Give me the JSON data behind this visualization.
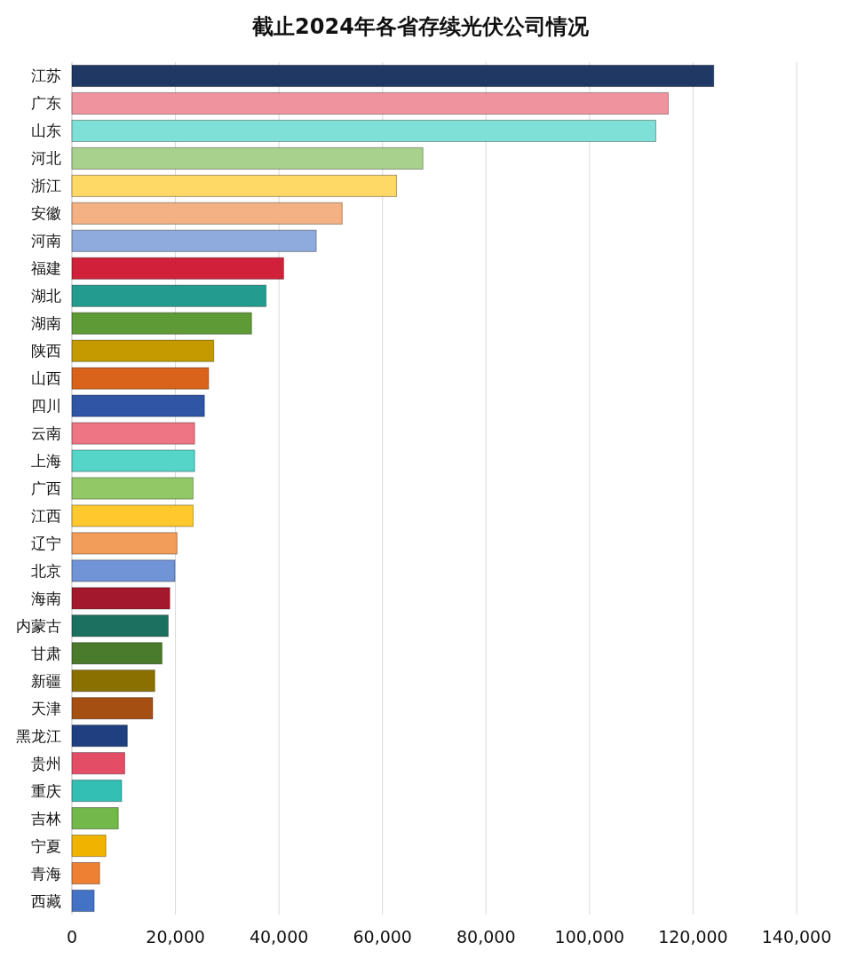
{
  "chart_data": {
    "type": "bar",
    "orientation": "horizontal",
    "title": "截止2024年各省存续光伏公司情况",
    "categories": [
      "江苏",
      "广东",
      "山东",
      "河北",
      "浙江",
      "安徽",
      "河南",
      "福建",
      "湖北",
      "湖南",
      "陕西",
      "山西",
      "四川",
      "云南",
      "上海",
      "广西",
      "江西",
      "辽宁",
      "北京",
      "海南",
      "内蒙古",
      "甘肃",
      "新疆",
      "天津",
      "黑龙江",
      "贵州",
      "重庆",
      "吉林",
      "宁夏",
      "青海",
      "西藏"
    ],
    "values": [
      124000,
      115200,
      112800,
      67800,
      62700,
      52200,
      47200,
      40900,
      37500,
      34700,
      27400,
      26400,
      25600,
      23700,
      23700,
      23400,
      23400,
      20300,
      19900,
      18900,
      18600,
      17400,
      16000,
      15600,
      10700,
      10200,
      9600,
      8950,
      6550,
      5350,
      4300
    ],
    "colors": [
      "#1f3864",
      "#ef949f",
      "#7fe0d8",
      "#a9d18e",
      "#ffd966",
      "#f4b183",
      "#8faadc",
      "#d0203a",
      "#239c8f",
      "#5e9a35",
      "#c49a00",
      "#d9631a",
      "#2f55a4",
      "#ee7583",
      "#55d4c8",
      "#92c866",
      "#ffc92e",
      "#f29d5a",
      "#7094d6",
      "#a3182c",
      "#1c7060",
      "#4a7a2b",
      "#8a7000",
      "#a64f12",
      "#1f3f80",
      "#e34d66",
      "#33bfb4",
      "#73b84a",
      "#f0b400",
      "#ed8033",
      "#4472c4"
    ],
    "xlim": [
      0,
      140000
    ],
    "xticks": [
      0,
      {
        "value": 20000,
        "label": "20,000"
      },
      {
        "value": 40000,
        "label": "40,000"
      },
      {
        "value": 60000,
        "label": "60,000"
      },
      {
        "value": 80000,
        "label": "80,000"
      },
      {
        "value": 100000,
        "label": "100,000"
      },
      {
        "value": 120000,
        "label": "120,000"
      },
      {
        "value": 140000,
        "label": "140,000"
      }
    ],
    "grid": "x"
  }
}
